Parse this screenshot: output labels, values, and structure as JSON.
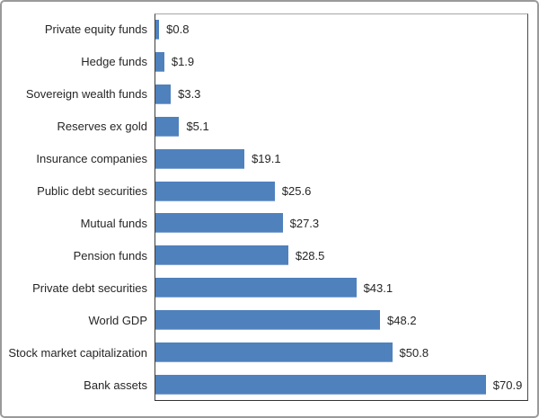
{
  "chart_data": {
    "type": "bar",
    "orientation": "horizontal",
    "title": "",
    "categories": [
      "Private equity funds",
      "Hedge funds",
      "Sovereign wealth funds",
      "Reserves ex gold",
      "Insurance companies",
      "Public debt securities",
      "Mutual funds",
      "Pension funds",
      "Private debt securities",
      "World GDP",
      "Stock market capitalization",
      "Bank assets"
    ],
    "values": [
      0.8,
      1.9,
      3.3,
      5.1,
      19.1,
      25.6,
      27.3,
      28.5,
      43.1,
      48.2,
      50.8,
      70.9
    ],
    "value_labels": [
      "$0.8",
      "$1.9",
      "$3.3",
      "$5.1",
      "$19.1",
      "$25.6",
      "$27.3",
      "$28.5",
      "$43.1",
      "$48.2",
      "$50.8",
      "$70.9"
    ],
    "xlabel": "",
    "ylabel": "",
    "xlim": [
      0,
      80
    ],
    "grid": false,
    "legend": "none",
    "value_label_position": "outside-end",
    "bar_color": "#4f81bd",
    "bar_edge_color": "#84a7d1"
  },
  "colors": {
    "plot_border_dark": "#3c3c3c",
    "plot_border_light": "#a6a6a6",
    "outer_frame": "#9a9a9a",
    "text": "#262626",
    "background": "#ffffff"
  }
}
